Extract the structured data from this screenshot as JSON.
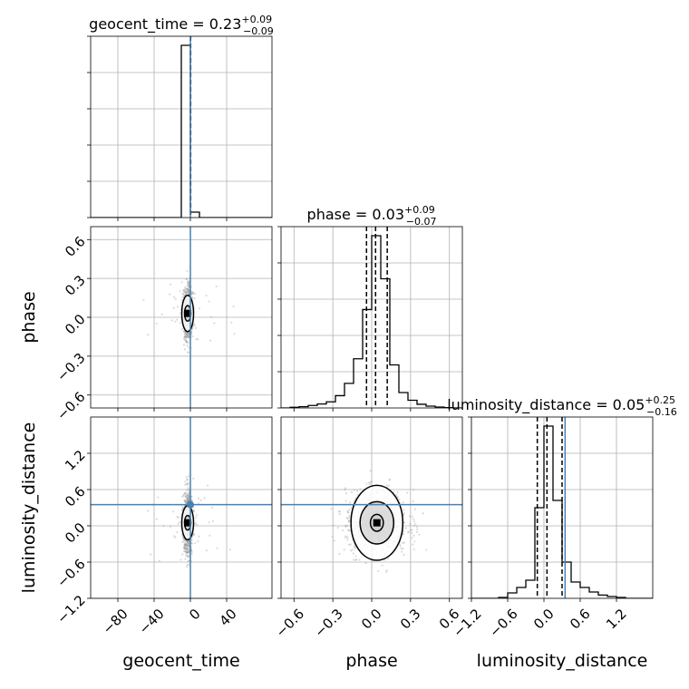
{
  "chart_data": {
    "type": "corner",
    "parameters": [
      "geocent_time",
      "phase",
      "luminosity_distance"
    ],
    "titles": {
      "geocent_time": {
        "name": "geocent_time",
        "median": "0.23",
        "plus": "+0.09",
        "minus": "−0.09"
      },
      "phase": {
        "name": "phase",
        "median": "0.03",
        "plus": "+0.09",
        "minus": "−0.07"
      },
      "luminosity_distance": {
        "name": "luminosity_distance",
        "median": "0.05",
        "plus": "+0.25",
        "minus": "−0.16"
      }
    },
    "axis_labels": {
      "x": [
        "geocent_time",
        "phase",
        "luminosity_distance"
      ],
      "y": [
        "phase",
        "luminosity_distance"
      ]
    },
    "ranges": {
      "geocent_time": [
        -110,
        90
      ],
      "phase": [
        -0.7,
        0.7
      ],
      "luminosity_distance": [
        -1.2,
        1.8
      ]
    },
    "ticks": {
      "geocent_time": [
        -80,
        -40,
        0,
        40
      ],
      "phase": [
        -0.6,
        -0.3,
        0.0,
        0.3,
        0.6
      ],
      "luminosity_distance": [
        -1.2,
        -0.6,
        0.0,
        0.6,
        1.2
      ]
    },
    "tick_labels": {
      "geocent_time": [
        "−80",
        "−40",
        "0",
        "40"
      ],
      "phase": [
        "−0.6",
        "−0.3",
        "0.0",
        "0.3",
        "0.6"
      ],
      "luminosity_distance": [
        "−1.2",
        "−0.6",
        "0.0",
        "0.6",
        "1.2"
      ]
    },
    "truths": {
      "geocent_time": 0.0,
      "phase": null,
      "luminosity_distance": 0.35
    },
    "quantiles": {
      "geocent_time": [
        0.14,
        0.23,
        0.32
      ],
      "phase": [
        -0.04,
        0.03,
        0.12
      ],
      "luminosity_distance": [
        -0.11,
        0.05,
        0.3
      ]
    },
    "histograms": {
      "geocent_time": {
        "edges": [
          -110,
          -100,
          -90,
          -80,
          -70,
          -60,
          -50,
          -40,
          -30,
          -20,
          -10,
          0,
          10,
          20,
          30,
          40,
          50,
          60,
          70,
          80,
          90
        ],
        "counts": [
          0,
          0,
          0,
          0,
          0,
          0,
          0,
          0,
          0,
          0,
          0.95,
          0.03,
          0,
          0,
          0,
          0,
          0,
          0,
          0,
          0
        ]
      },
      "phase": {
        "edges": [
          -0.7,
          -0.63,
          -0.56,
          -0.49,
          -0.42,
          -0.35,
          -0.28,
          -0.21,
          -0.14,
          -0.07,
          0.0,
          0.07,
          0.14,
          0.21,
          0.28,
          0.35,
          0.42,
          0.49,
          0.56,
          0.63,
          0.7
        ],
        "counts": [
          0,
          0.002,
          0.004,
          0.008,
          0.013,
          0.02,
          0.04,
          0.08,
          0.16,
          0.32,
          0.56,
          0.42,
          0.14,
          0.05,
          0.025,
          0.012,
          0.006,
          0.003,
          0.001,
          0
        ]
      },
      "luminosity_distance": {
        "edges": [
          -1.2,
          -1.05,
          -0.9,
          -0.75,
          -0.6,
          -0.45,
          -0.3,
          -0.15,
          0.0,
          0.15,
          0.3,
          0.45,
          0.6,
          0.75,
          0.9,
          1.05,
          1.2,
          1.35,
          1.5,
          1.65,
          1.8
        ],
        "counts": [
          0,
          0,
          0,
          0.005,
          0.03,
          0.06,
          0.1,
          0.5,
          0.95,
          0.54,
          0.2,
          0.09,
          0.06,
          0.035,
          0.018,
          0.01,
          0.005,
          0,
          0,
          0
        ]
      }
    },
    "contours": [
      {
        "x": "geocent_time",
        "y": "phase",
        "center": [
          -3,
          0.03
        ],
        "radii": [
          [
            3.5,
            0.06
          ],
          [
            6.5,
            0.14
          ]
        ]
      },
      {
        "x": "geocent_time",
        "y": "luminosity_distance",
        "center": [
          -3,
          0.05
        ],
        "radii": [
          [
            3.5,
            0.12
          ],
          [
            6.5,
            0.28
          ]
        ]
      },
      {
        "x": "phase",
        "y": "luminosity_distance",
        "center": [
          0.04,
          0.05
        ],
        "radii": [
          [
            0.05,
            0.14
          ],
          [
            0.13,
            0.35
          ],
          [
            0.2,
            0.62
          ]
        ]
      }
    ],
    "grid": true,
    "colors": {
      "truth": "#4682b4",
      "hist": "#000000",
      "points": "#999999",
      "grid": "#b0b0b0"
    }
  }
}
